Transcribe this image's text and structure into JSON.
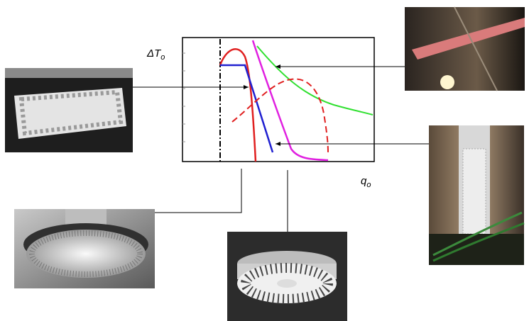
{
  "axes": {
    "y_label": "ΔT",
    "y_label_sub": "o",
    "x_label": "q",
    "x_label_sub": "o"
  }
}
